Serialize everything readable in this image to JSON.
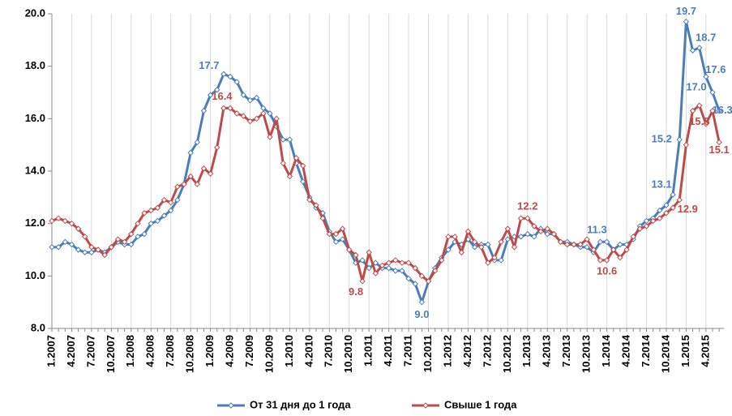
{
  "chart_data": {
    "type": "line",
    "categories": [
      "1.2007",
      null,
      null,
      "4.2007",
      null,
      null,
      "7.2007",
      null,
      null,
      "10.2007",
      null,
      null,
      "1.2008",
      null,
      null,
      "4.2008",
      null,
      null,
      "7.2008",
      null,
      null,
      "10.2008",
      null,
      null,
      "1.2009",
      null,
      null,
      "4.2009",
      null,
      null,
      "7.2009",
      null,
      null,
      "10.2009",
      null,
      null,
      "1.2010",
      null,
      null,
      "4.2010",
      null,
      null,
      "7.2010",
      null,
      null,
      "10.2010",
      null,
      null,
      "1.2011",
      null,
      null,
      "4.2011",
      null,
      null,
      "7.2011",
      null,
      null,
      "10.2011",
      null,
      null,
      "1.2012",
      null,
      null,
      "4.2012",
      null,
      null,
      "7.2012",
      null,
      null,
      "10.2012",
      null,
      null,
      "1.2013",
      null,
      null,
      "4.2013",
      null,
      null,
      "7.2013",
      null,
      null,
      "10.2013",
      null,
      null,
      "1.2014",
      null,
      null,
      "4.2014",
      null,
      null,
      "7.2014",
      null,
      null,
      "10.2014",
      null,
      null,
      "1.2015",
      null,
      null,
      "4.2015",
      null,
      null
    ],
    "series": [
      {
        "name": "От 31 дня до 1 года",
        "color": "#4a7ebb",
        "values": [
          11.1,
          11.1,
          11.3,
          11.2,
          11.0,
          10.9,
          10.9,
          11.0,
          10.9,
          11.1,
          11.3,
          11.2,
          11.2,
          11.5,
          11.6,
          12.0,
          12.1,
          12.3,
          12.5,
          12.9,
          13.5,
          14.7,
          15.1,
          16.3,
          16.9,
          17.1,
          17.7,
          17.6,
          17.4,
          16.9,
          16.7,
          16.8,
          16.4,
          16.2,
          15.7,
          15.2,
          15.2,
          14.3,
          13.6,
          13.0,
          12.6,
          12.4,
          11.7,
          11.3,
          11.4,
          11.0,
          10.5,
          10.6,
          10.3,
          10.5,
          10.3,
          10.3,
          10.2,
          10.2,
          9.9,
          9.7,
          9.0,
          9.8,
          10.3,
          10.7,
          11.0,
          11.3,
          11.2,
          11.4,
          11.1,
          11.2,
          11.2,
          10.6,
          10.6,
          11.4,
          11.5,
          11.5,
          11.6,
          11.5,
          11.8,
          11.6,
          11.6,
          11.3,
          11.3,
          11.2,
          11.1,
          11.1,
          10.9,
          11.3,
          11.3,
          11.0,
          11.2,
          11.2,
          11.4,
          11.9,
          12.1,
          12.2,
          12.5,
          12.7,
          13.1,
          15.2,
          19.7,
          18.6,
          18.7,
          17.6,
          17.0,
          16.3
        ],
        "value_labels": [
          null,
          null,
          null,
          null,
          null,
          null,
          null,
          null,
          null,
          null,
          null,
          null,
          null,
          null,
          null,
          null,
          null,
          null,
          null,
          null,
          null,
          null,
          null,
          null,
          null,
          null,
          "17.7",
          null,
          null,
          null,
          null,
          null,
          null,
          null,
          null,
          null,
          null,
          null,
          null,
          null,
          null,
          null,
          null,
          null,
          null,
          null,
          null,
          null,
          null,
          null,
          null,
          null,
          null,
          null,
          null,
          null,
          "9.0",
          null,
          null,
          null,
          null,
          null,
          null,
          null,
          null,
          null,
          null,
          null,
          null,
          null,
          null,
          null,
          null,
          null,
          null,
          null,
          null,
          null,
          null,
          null,
          null,
          null,
          null,
          "11.3",
          null,
          null,
          null,
          null,
          null,
          null,
          null,
          null,
          null,
          null,
          "13.1",
          "15.2",
          "19.7",
          null,
          "18.7",
          "17.6",
          "17.0",
          "16.3"
        ]
      },
      {
        "name": "Свыше 1 года",
        "color": "#be4b48",
        "values": [
          12.1,
          12.2,
          12.1,
          12.0,
          11.8,
          11.5,
          11.1,
          11.0,
          10.8,
          11.1,
          11.4,
          11.3,
          11.6,
          12.0,
          12.4,
          12.5,
          12.6,
          12.9,
          12.8,
          13.4,
          13.5,
          13.8,
          13.5,
          14.1,
          13.9,
          14.9,
          16.4,
          16.4,
          16.2,
          16.1,
          15.9,
          16.0,
          16.2,
          15.3,
          16.0,
          14.3,
          13.8,
          14.5,
          14.2,
          12.9,
          12.7,
          12.2,
          11.6,
          11.6,
          11.8,
          11.0,
          10.8,
          9.8,
          10.9,
          10.1,
          10.4,
          10.5,
          10.6,
          10.5,
          10.5,
          10.3,
          10.0,
          9.8,
          10.2,
          10.6,
          11.5,
          11.5,
          10.9,
          11.7,
          11.3,
          11.1,
          10.5,
          10.7,
          11.3,
          11.8,
          11.1,
          12.2,
          12.2,
          11.9,
          11.7,
          11.8,
          11.6,
          11.3,
          11.2,
          11.2,
          11.2,
          11.4,
          11.0,
          10.6,
          10.6,
          11.0,
          10.7,
          11.0,
          11.5,
          11.8,
          11.9,
          12.1,
          12.2,
          12.4,
          12.6,
          12.9,
          15.0,
          16.3,
          16.5,
          15.8,
          16.3,
          15.1
        ],
        "value_labels": [
          null,
          null,
          null,
          null,
          null,
          null,
          null,
          null,
          null,
          null,
          null,
          null,
          null,
          null,
          null,
          null,
          null,
          null,
          null,
          null,
          null,
          null,
          null,
          null,
          null,
          null,
          "16.4",
          null,
          null,
          null,
          null,
          null,
          null,
          null,
          null,
          null,
          null,
          null,
          null,
          null,
          null,
          null,
          null,
          null,
          null,
          null,
          null,
          "9.8",
          null,
          null,
          null,
          null,
          null,
          null,
          null,
          null,
          null,
          null,
          null,
          null,
          null,
          null,
          null,
          null,
          null,
          null,
          null,
          null,
          null,
          null,
          null,
          null,
          "12.2",
          null,
          null,
          null,
          null,
          null,
          null,
          null,
          null,
          null,
          null,
          null,
          "10.6",
          null,
          null,
          null,
          null,
          null,
          null,
          null,
          null,
          null,
          null,
          "12.9",
          null,
          null,
          null,
          "15.8",
          null,
          "15.1"
        ]
      }
    ],
    "ylim": [
      8,
      20
    ],
    "yticks": [
      {
        "value": 8,
        "label": "8.0"
      },
      {
        "value": 10,
        "label": "10.0"
      },
      {
        "value": 12,
        "label": "12.0"
      },
      {
        "value": 14,
        "label": "14.0"
      },
      {
        "value": 16,
        "label": "16.0"
      },
      {
        "value": 18,
        "label": "18.0"
      },
      {
        "value": 20,
        "label": "20.0"
      }
    ],
    "grid": true,
    "legend": "bottom"
  }
}
